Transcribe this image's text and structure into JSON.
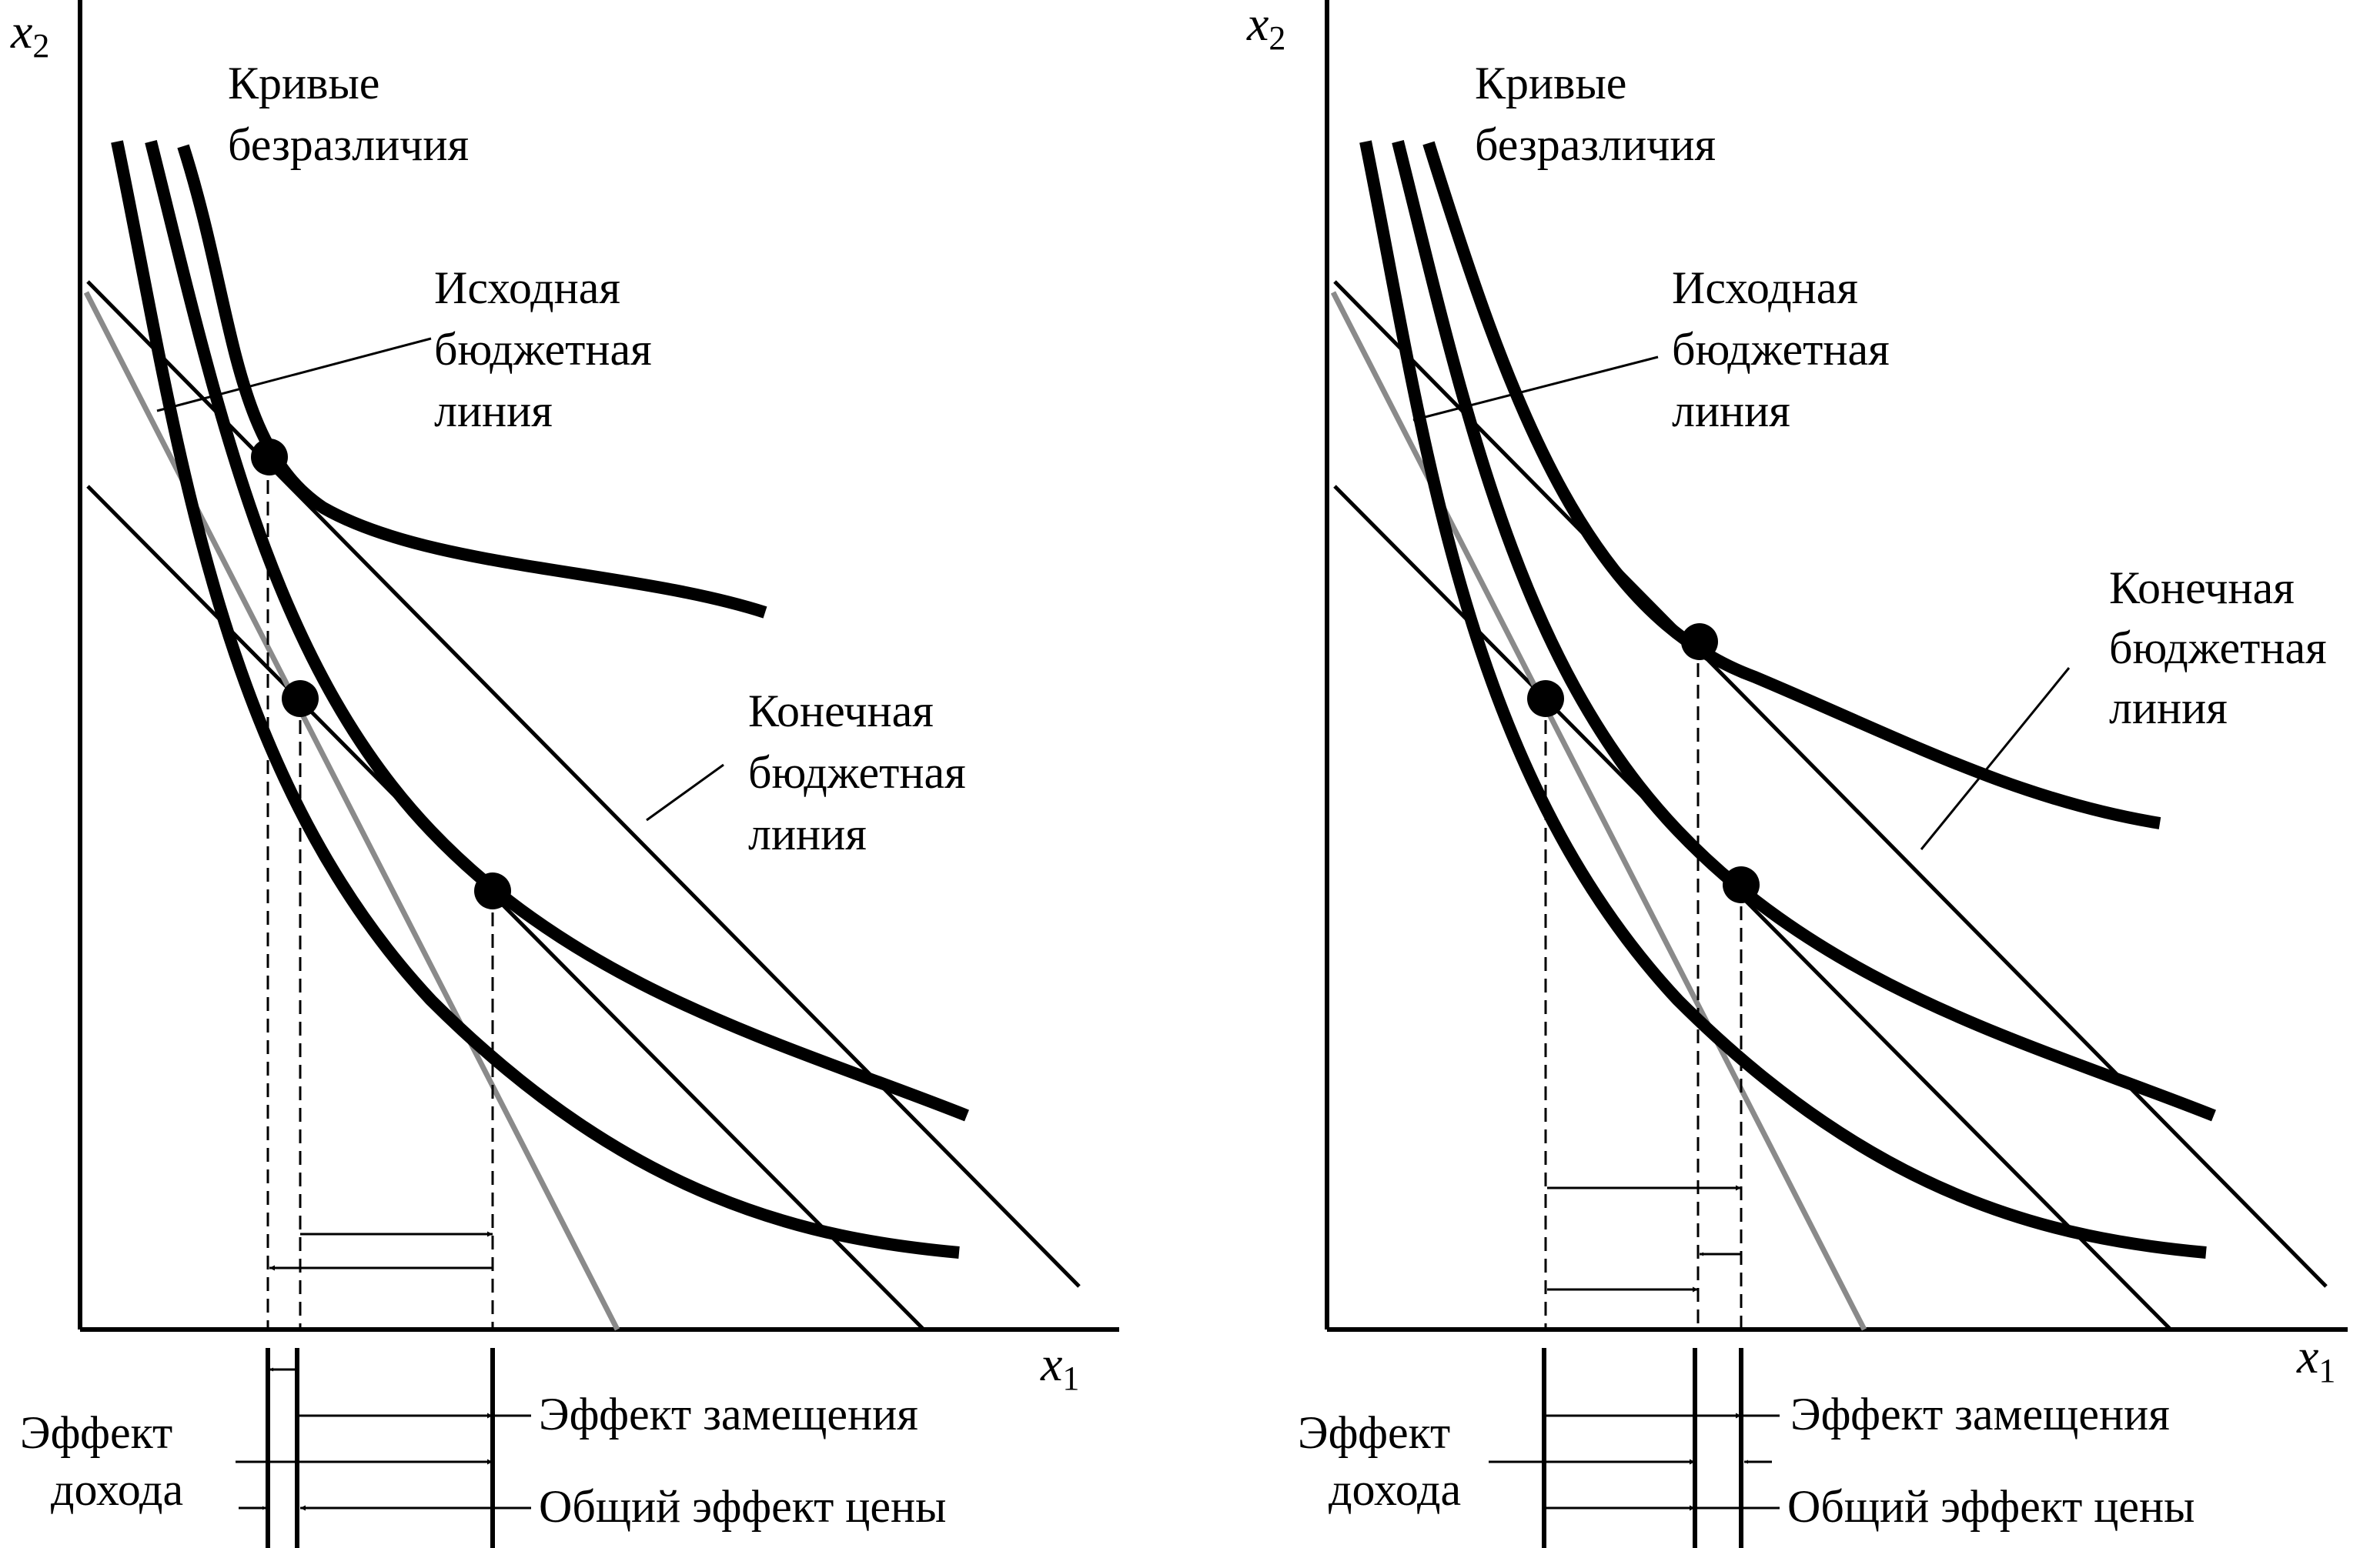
{
  "colors": {
    "ink": "#000000",
    "gray": "#8a8a8a",
    "background": "#ffffff"
  },
  "panels": [
    {
      "id": "left",
      "axis_y_letter": "x",
      "axis_y_subscript": "2",
      "axis_x_letter": "x",
      "axis_x_subscript": "1",
      "label_indifference": [
        "Кривые",
        "безразличия"
      ],
      "label_initial_budget": [
        "Исходная",
        "бюджетная",
        "линия"
      ],
      "label_final_budget": [
        "Конечная",
        "бюджетная",
        "линия"
      ],
      "label_income_effect": [
        "Эффект",
        "дохода"
      ],
      "label_substitution_effect": "Эффект замещения",
      "label_total_effect": "Общий эффект цены"
    },
    {
      "id": "right",
      "axis_y_letter": "x",
      "axis_y_subscript": "2",
      "axis_x_letter": "x",
      "axis_x_subscript": "1",
      "label_indifference": [
        "Кривые",
        "безразличия"
      ],
      "label_initial_budget": [
        "Исходная",
        "бюджетная",
        "линия"
      ],
      "label_final_budget": [
        "Конечная",
        "бюджетная",
        "линия"
      ],
      "label_income_effect": [
        "Эффект",
        "дохода"
      ],
      "label_substitution_effect": "Эффект замещения",
      "label_total_effect": "Общий эффект цены"
    }
  ]
}
